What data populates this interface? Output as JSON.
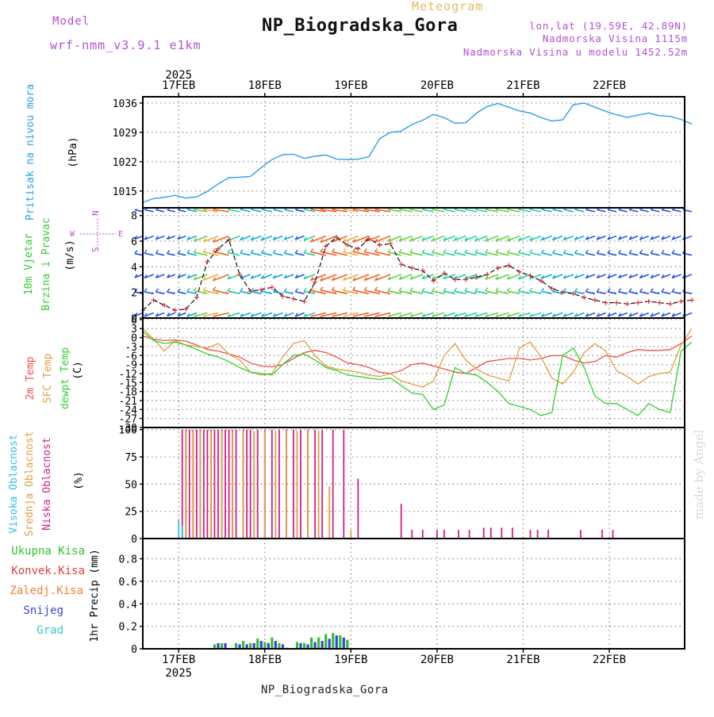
{
  "header": {
    "title": "NP_Biogradska_Gora",
    "subtitle": "Meteogram",
    "model_label": "Model",
    "model_name": "wrf-nmm_v3.9.1 e1km",
    "coords": "lon,lat (19.59E, 42.89N)",
    "elevation": "Nadmorska Visina 1115m",
    "model_elevation": "Nadmorska Visina u modelu 1452.52m",
    "footer": "NP_Biogradska_Gora",
    "credit": "made by Angel"
  },
  "colors": {
    "pressure": "#2aa0e8",
    "t2m": "#f0504a",
    "sfc": "#e0a040",
    "dewpt": "#30d030",
    "high_cloud": "#30c0e8",
    "mid_cloud": "#e0a040",
    "low_cloud": "#d0208a",
    "total_precip": "#30c030",
    "conv_precip": "#e04040",
    "frozen_precip": "#f08030",
    "snow": "#4040e0",
    "graupel": "#30c8c8",
    "grid": "#888888"
  },
  "chart_data": {
    "type": "line",
    "time_axis": {
      "year": "2025",
      "days": [
        "17FEB",
        "18FEB",
        "19FEB",
        "20FEB",
        "21FEB",
        "22FEB"
      ],
      "start_hour": -10,
      "end_hour": 141,
      "step_hours": 3
    },
    "panels": [
      {
        "id": "pressure",
        "ylabel": "(hPa)",
        "side_labels": [
          "Pritisak na nivou mora"
        ],
        "yticks": [
          1015,
          1022,
          1029,
          1036
        ],
        "ylim": [
          1011,
          1037.5
        ],
        "series": [
          {
            "values": [
              1012.3,
              1013.2,
              1013.5,
              1014.0,
              1013.3,
              1013.6,
              1014.9,
              1016.7,
              1018.2,
              1018.3,
              1018.5,
              1020.6,
              1022.5,
              1023.7,
              1023.8,
              1022.8,
              1023.3,
              1023.6,
              1022.6,
              1022.5,
              1022.6,
              1023.2,
              1027.5,
              1029.0,
              1029.3,
              1030.9,
              1031.9,
              1033.3,
              1032.5,
              1031.2,
              1031.3,
              1033.6,
              1035.2,
              1035.9,
              1035.0,
              1034.1,
              1033.6,
              1032.5,
              1031.7,
              1032.0,
              1035.6,
              1036.0,
              1035.0,
              1034.0,
              1033.2,
              1032.6,
              1033.1,
              1033.6,
              1033.0,
              1032.8,
              1032.1,
              1031.0
            ]
          }
        ]
      },
      {
        "id": "wind",
        "ylabel": "(m/s)",
        "side_labels": [
          "10m Vjetar",
          "Brzina i Pravac"
        ],
        "compass": [
          "N",
          "W",
          "E",
          "S"
        ],
        "yticks": [
          0,
          2,
          4,
          6,
          8
        ],
        "ylim": [
          0,
          8.6
        ],
        "series": [
          {
            "name": "Brzina",
            "values": [
              0.6,
              1.4,
              1.0,
              0.6,
              0.7,
              1.6,
              4.4,
              5.4,
              6.1,
              3.4,
              2.1,
              2.2,
              2.4,
              1.7,
              1.5,
              1.3,
              2.8,
              5.6,
              6.3,
              5.7,
              5.4,
              6.2,
              5.7,
              5.8,
              4.2,
              3.9,
              3.7,
              2.9,
              3.5,
              3.0,
              3.0,
              3.2,
              3.4,
              3.9,
              4.1,
              3.6,
              3.3,
              2.9,
              2.3,
              2.0,
              1.9,
              1.6,
              1.4,
              1.2,
              1.2,
              1.1,
              1.2,
              1.3,
              1.2,
              1.1,
              1.3,
              1.4
            ]
          }
        ]
      },
      {
        "id": "temperature",
        "ylabel": "(C)",
        "side_labels": [
          "2m Temp",
          "SFC Temp",
          "dewpt Temp"
        ],
        "yticks": [
          6,
          3,
          0,
          -3,
          -6,
          -9,
          -12,
          -15,
          -18,
          -21,
          -24,
          -27,
          -30
        ],
        "ylim": [
          -30,
          6.5
        ],
        "series": [
          {
            "name": "2m Temp",
            "values": [
              0.5,
              -0.5,
              -1.0,
              -0.8,
              -1.2,
              -2.5,
              -4.0,
              -4.5,
              -5.5,
              -6.5,
              -8.5,
              -9.5,
              -9.8,
              -9.0,
              -7.0,
              -5.0,
              -4.3,
              -5.0,
              -6.5,
              -8.5,
              -9.0,
              -10.0,
              -11.5,
              -12.0,
              -11.0,
              -9.0,
              -8.5,
              -9.5,
              -10.5,
              -11.5,
              -12.0,
              -10.0,
              -8.0,
              -7.5,
              -7.0,
              -7.0,
              -7.5,
              -7.0,
              -6.0,
              -6.0,
              -7.5,
              -8.5,
              -8.0,
              -6.0,
              -6.5,
              -5.0,
              -4.0,
              -4.3,
              -4.3,
              -4.0,
              -2.0,
              0.5
            ]
          },
          {
            "name": "SFC Temp",
            "values": [
              3.0,
              -0.5,
              -4.5,
              -1.0,
              -2.5,
              -3.0,
              -3.5,
              -2.0,
              -5.5,
              -7.5,
              -11.5,
              -12.5,
              -12.0,
              -6.5,
              -2.0,
              -1.0,
              -6.0,
              -9.5,
              -10.5,
              -11.0,
              -11.5,
              -12.5,
              -13.0,
              -12.0,
              -14.5,
              -15.5,
              -16.5,
              -14.5,
              -6.0,
              -2.0,
              -7.5,
              -10.5,
              -12.5,
              -13.5,
              -14.5,
              -3.5,
              -1.5,
              -6.5,
              -13.5,
              -15.5,
              -11.5,
              -5.0,
              -2.0,
              -4.5,
              -11.0,
              -13.0,
              -15.5,
              -13.0,
              -12.0,
              -11.5,
              -2.5,
              3.0
            ]
          },
          {
            "name": "dewpt Temp",
            "values": [
              2.0,
              -1.0,
              -2.0,
              -1.5,
              -2.5,
              -4.0,
              -5.5,
              -6.5,
              -8.0,
              -10.0,
              -11.5,
              -12.0,
              -12.5,
              -9.0,
              -6.0,
              -5.5,
              -7.5,
              -10.0,
              -11.0,
              -12.5,
              -13.0,
              -13.5,
              -14.0,
              -13.5,
              -16.0,
              -18.5,
              -19.0,
              -24.0,
              -22.5,
              -10.0,
              -12.0,
              -12.5,
              -15.0,
              -18.0,
              -22.0,
              -23.0,
              -24.0,
              -26.0,
              -25.0,
              -6.0,
              -3.5,
              -10.0,
              -19.5,
              -22.0,
              -22.0,
              -24.0,
              -26.0,
              -22.0,
              -24.0,
              -25.0,
              -4.5,
              -1.5
            ]
          }
        ]
      },
      {
        "id": "clouds",
        "ylabel": "(%)",
        "side_labels": [
          "Visoka Oblacnost",
          "Srednja Oblacnost",
          "Niska Oblacnost"
        ],
        "yticks": [
          0,
          25,
          50,
          75,
          100
        ],
        "ylim": [
          0,
          102
        ],
        "series": [
          {
            "name": "Niska",
            "bars": [
              [
                1,
                100
              ],
              [
                2,
                100
              ],
              [
                3,
                100
              ],
              [
                4,
                100
              ],
              [
                5,
                100
              ],
              [
                6,
                100
              ],
              [
                7,
                100
              ],
              [
                8,
                100
              ],
              [
                9,
                100
              ],
              [
                10,
                100
              ],
              [
                11,
                100
              ],
              [
                12,
                100
              ],
              [
                13,
                100
              ],
              [
                14,
                100
              ],
              [
                15,
                100
              ],
              [
                16,
                100
              ],
              [
                18,
                100
              ],
              [
                19,
                100
              ],
              [
                20,
                100
              ],
              [
                22,
                100
              ],
              [
                24,
                100
              ],
              [
                26,
                100
              ],
              [
                28,
                100
              ],
              [
                30,
                100
              ],
              [
                32,
                100
              ],
              [
                34,
                100
              ],
              [
                36,
                100
              ],
              [
                38,
                100
              ],
              [
                40,
                100
              ],
              [
                43,
                100
              ],
              [
                46,
                100
              ],
              [
                50,
                55
              ],
              [
                62,
                32
              ],
              [
                65,
                8
              ],
              [
                68,
                8
              ],
              [
                72,
                8
              ],
              [
                74,
                8
              ],
              [
                78,
                8
              ],
              [
                81,
                8
              ],
              [
                85,
                10
              ],
              [
                87,
                10
              ],
              [
                90,
                10
              ],
              [
                93,
                10
              ],
              [
                98,
                8
              ],
              [
                100,
                8
              ],
              [
                103,
                8
              ],
              [
                112,
                8
              ],
              [
                118,
                8
              ],
              [
                121,
                8
              ]
            ]
          },
          {
            "name": "Srednja",
            "bars": [
              [
                2,
                99
              ],
              [
                4,
                99
              ],
              [
                6,
                99
              ],
              [
                9,
                99
              ],
              [
                12,
                99
              ],
              [
                15,
                99
              ],
              [
                18,
                99
              ],
              [
                21,
                99
              ],
              [
                24,
                99
              ],
              [
                27,
                99
              ],
              [
                30,
                99
              ],
              [
                33,
                99
              ],
              [
                36,
                99
              ],
              [
                39,
                99
              ],
              [
                42,
                48
              ],
              [
                48,
                8
              ]
            ]
          },
          {
            "name": "Visoka",
            "bars": [
              [
                0,
                18
              ],
              [
                1,
                12
              ]
            ]
          }
        ]
      },
      {
        "id": "precip",
        "ylabel": "1hr Precip (mm)",
        "side_labels": [
          "Ukupna Kisa",
          "Konvek.Kisa",
          "Zaledj.Kisa",
          "Snijeg",
          "Grad"
        ],
        "yticks": [
          0,
          0.2,
          0.4,
          0.6,
          0.8
        ],
        "ylim": [
          0,
          0.98
        ],
        "series": [
          {
            "name": "Ukupna Kisa",
            "bars": [
              [
                10,
                0.04
              ],
              [
                12,
                0.05
              ],
              [
                16,
                0.05
              ],
              [
                18,
                0.07
              ],
              [
                20,
                0.05
              ],
              [
                22,
                0.09
              ],
              [
                24,
                0.06
              ],
              [
                26,
                0.1
              ],
              [
                28,
                0.05
              ],
              [
                30,
                0.01
              ],
              [
                33,
                0.06
              ],
              [
                35,
                0.05
              ],
              [
                37,
                0.1
              ],
              [
                39,
                0.1
              ],
              [
                41,
                0.13
              ],
              [
                43,
                0.14
              ],
              [
                45,
                0.12
              ],
              [
                47,
                0.08
              ]
            ]
          },
          {
            "name": "Snijeg",
            "bars": [
              [
                11,
                0.05
              ],
              [
                13,
                0.05
              ],
              [
                17,
                0.04
              ],
              [
                19,
                0.04
              ],
              [
                21,
                0.05
              ],
              [
                23,
                0.07
              ],
              [
                25,
                0.05
              ],
              [
                27,
                0.07
              ],
              [
                29,
                0.04
              ],
              [
                34,
                0.05
              ],
              [
                36,
                0.04
              ],
              [
                38,
                0.06
              ],
              [
                40,
                0.07
              ],
              [
                42,
                0.09
              ],
              [
                44,
                0.12
              ],
              [
                46,
                0.1
              ]
            ]
          }
        ]
      }
    ]
  }
}
